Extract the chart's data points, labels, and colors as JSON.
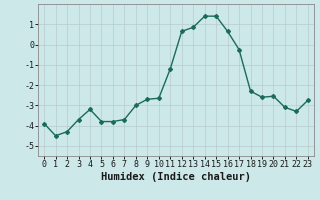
{
  "x": [
    0,
    1,
    2,
    3,
    4,
    5,
    6,
    7,
    8,
    9,
    10,
    11,
    12,
    13,
    14,
    15,
    16,
    17,
    18,
    19,
    20,
    21,
    22,
    23
  ],
  "y": [
    -3.9,
    -4.5,
    -4.3,
    -3.7,
    -3.2,
    -3.8,
    -3.8,
    -3.7,
    -3.0,
    -2.7,
    -2.65,
    -1.2,
    0.65,
    0.85,
    1.4,
    1.4,
    0.65,
    -0.25,
    -2.3,
    -2.6,
    -2.55,
    -3.1,
    -3.3,
    -2.75
  ],
  "xlabel": "Humidex (Indice chaleur)",
  "ylim": [
    -5.5,
    2.0
  ],
  "xlim": [
    -0.5,
    23.5
  ],
  "yticks": [
    -5,
    -4,
    -3,
    -2,
    -1,
    0,
    1
  ],
  "xticks": [
    0,
    1,
    2,
    3,
    4,
    5,
    6,
    7,
    8,
    9,
    10,
    11,
    12,
    13,
    14,
    15,
    16,
    17,
    18,
    19,
    20,
    21,
    22,
    23
  ],
  "line_color": "#1a6b5a",
  "marker": "D",
  "marker_size": 2.0,
  "bg_color": "#cce8e8",
  "grid_color": "#b8cccc",
  "tick_label_fontsize": 6.0,
  "xlabel_fontsize": 7.5,
  "line_width": 1.0
}
